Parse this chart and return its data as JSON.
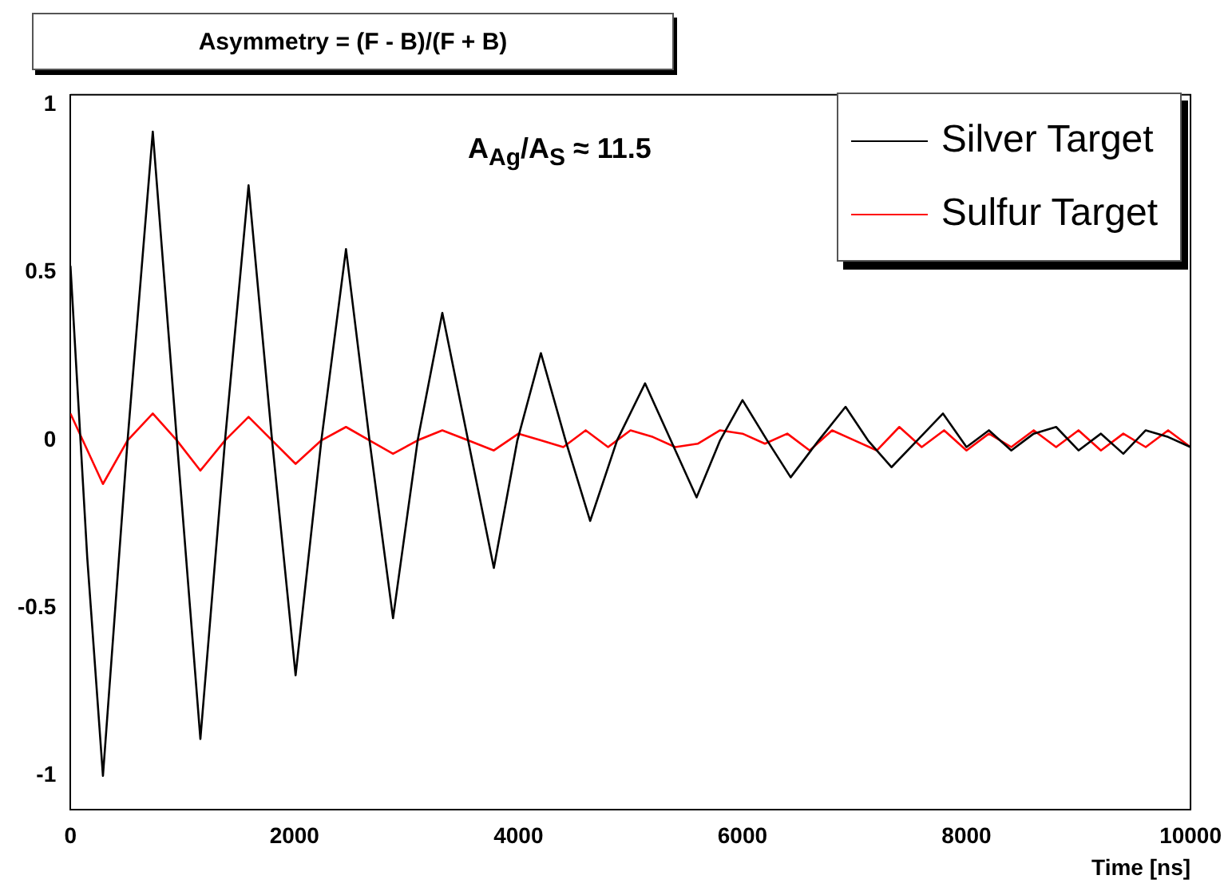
{
  "chart_data": {
    "type": "line",
    "title": "Asymmetry = (F - B)/(F + B)",
    "xlabel": "Time [ns]",
    "annotations": [
      "A$_{Ag}$/A$_{S}$ ≈ 11.5"
    ],
    "xlim": [
      0,
      10000
    ],
    "xticks": [
      0,
      2000,
      4000,
      6000,
      8000,
      10000
    ],
    "ylim": [
      -1.1,
      1.03
    ],
    "yticks": [
      -1,
      -0.5,
      0,
      0.5,
      1
    ],
    "grid": false,
    "legend": "top right",
    "marker": "none",
    "line_style": "solid",
    "series": [
      {
        "name": "Silver Target",
        "color": "#000000",
        "x": [
          0,
          150,
          290,
          510,
          735,
          950,
          1160,
          1380,
          1590,
          1800,
          2010,
          2240,
          2460,
          2670,
          2880,
          3100,
          3320,
          3550,
          3780,
          3990,
          4200,
          4420,
          4640,
          4880,
          5130,
          5360,
          5590,
          5800,
          6000,
          6220,
          6430,
          6680,
          6920,
          7120,
          7330,
          7560,
          7790,
          8000,
          8200,
          8400,
          8600,
          8800,
          9000,
          9200,
          9400,
          9600,
          9800,
          10000
        ],
        "values": [
          0.52,
          -0.35,
          -1.0,
          0,
          0.92,
          0,
          -0.89,
          0,
          0.76,
          0,
          -0.7,
          0,
          0.57,
          0,
          -0.53,
          0,
          0.38,
          0,
          -0.38,
          0,
          0.26,
          0,
          -0.24,
          0,
          0.17,
          0,
          -0.17,
          0,
          0.12,
          0,
          -0.11,
          0,
          0.1,
          0,
          -0.08,
          0,
          0.08,
          -0.02,
          0.03,
          -0.03,
          0.02,
          0.04,
          -0.03,
          0.02,
          -0.04,
          0.03,
          0.01,
          -0.02
        ]
      },
      {
        "name": "Sulfur Target",
        "color": "#ff0000",
        "x": [
          0,
          290,
          510,
          735,
          950,
          1160,
          1380,
          1590,
          1800,
          2010,
          2240,
          2460,
          2670,
          2880,
          3100,
          3320,
          3550,
          3780,
          4000,
          4200,
          4400,
          4600,
          4800,
          5000,
          5200,
          5400,
          5600,
          5800,
          6000,
          6200,
          6400,
          6600,
          6800,
          7000,
          7200,
          7400,
          7600,
          7800,
          8000,
          8200,
          8400,
          8600,
          8800,
          9000,
          9200,
          9400,
          9600,
          9800,
          10000
        ],
        "values": [
          0.08,
          -0.13,
          0,
          0.08,
          0,
          -0.09,
          0,
          0.07,
          0,
          -0.07,
          0,
          0.04,
          0,
          -0.04,
          0,
          0.03,
          0,
          -0.03,
          0.02,
          0,
          -0.02,
          0.03,
          -0.02,
          0.03,
          0.01,
          -0.02,
          -0.01,
          0.03,
          0.02,
          -0.01,
          0.02,
          -0.03,
          0.03,
          0,
          -0.03,
          0.04,
          -0.02,
          0.03,
          -0.03,
          0.02,
          -0.02,
          0.03,
          -0.02,
          0.03,
          -0.03,
          0.02,
          -0.02,
          0.03,
          -0.02
        ]
      }
    ]
  }
}
